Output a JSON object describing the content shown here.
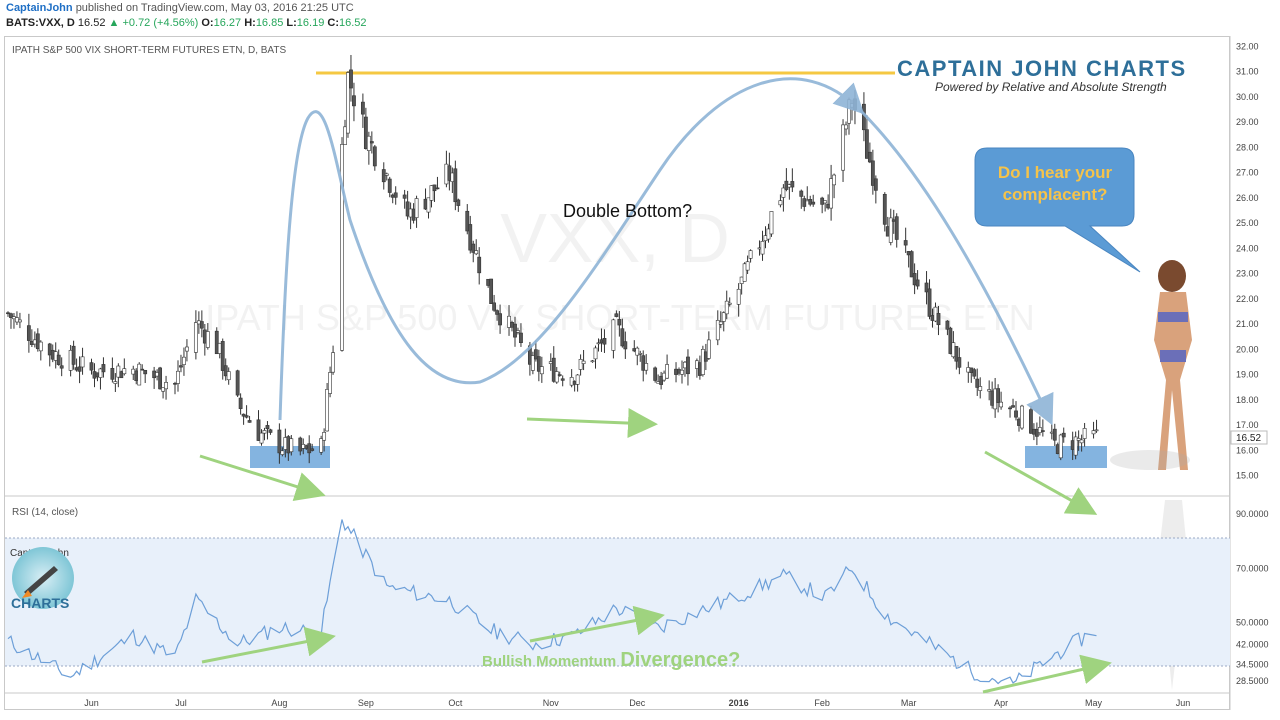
{
  "header": {
    "author": "CaptainJohn",
    "published": "published on TradingView.com, May 03, 2016 21:25 UTC",
    "symbol": "BATS:VXX, D",
    "last": "16.52",
    "change": "+0.72 (+4.56%)",
    "o_label": "O:",
    "o": "16.27",
    "h_label": "H:",
    "h": "16.85",
    "l_label": "L:",
    "l": "16.19",
    "c_label": "C:",
    "c": "16.52"
  },
  "chart": {
    "title": "IPATH S&P 500 VIX SHORT-TERM FUTURES ETN, D, BATS",
    "watermark_symbol": "VXX, D",
    "watermark_name": "IPATH S&P 500 VIX SHORT-TERM FUTURES ETN",
    "brand_title": "CAPTAIN  JOHN  CHARTS",
    "brand_subtitle": "Powered by Relative and  Absolute Strength",
    "double_bottom_label": "Double Bottom?",
    "bubble_text": "Do I hear your complacent?",
    "rsi_label": "RSI (14, close)",
    "logo_line1": "Captain John",
    "logo_line2": "CHARTS",
    "divergence_label_1": "Bullish Momentum ",
    "divergence_label_2": "Divergence?",
    "price_axis_ticks": [
      "32.00",
      "31.00",
      "30.00",
      "29.00",
      "28.00",
      "27.00",
      "26.00",
      "25.00",
      "24.00",
      "23.00",
      "22.00",
      "21.00",
      "20.00",
      "19.00",
      "18.00",
      "17.00",
      "16.00",
      "15.00"
    ],
    "current_price_tag": "16.52",
    "rsi_axis_ticks": [
      "90.0000",
      "70.0000",
      "50.0000",
      "42.0000",
      "34.5000",
      "28.5000"
    ],
    "x_ticks": [
      "Jun",
      "Jul",
      "Aug",
      "Sep",
      "Oct",
      "Nov",
      "Dec",
      "2016",
      "Feb",
      "Mar",
      "Apr",
      "May",
      "Jun"
    ],
    "colors": {
      "resistance": "#f5c842",
      "curve": "#8fb4d6",
      "arrow_green": "#9fd37f",
      "highlight": "#5b9bd5",
      "rsi_line": "#6d9fd8",
      "rsi_band": "#e8f0fa",
      "bubble": "#5b9bd5",
      "bubble_text": "#f5c34a",
      "brand_blue": "#2e6f99",
      "brand_accent": "#7db3d6"
    }
  },
  "chart_data": {
    "type": "candlestick",
    "title": "IPATH S&P 500 VIX SHORT-TERM FUTURES ETN, D, BATS",
    "y_range": [
      15,
      32
    ],
    "x_period": "May 2015 - Jun 2016",
    "close_points": [
      {
        "date": "2015-05-04",
        "close": 21.4
      },
      {
        "date": "2015-05-18",
        "close": 19.9
      },
      {
        "date": "2015-06-01",
        "close": 19.1
      },
      {
        "date": "2015-06-15",
        "close": 19.2
      },
      {
        "date": "2015-06-29",
        "close": 18.6
      },
      {
        "date": "2015-07-06",
        "close": 21.1
      },
      {
        "date": "2015-07-13",
        "close": 20.1
      },
      {
        "date": "2015-07-20",
        "close": 17.8
      },
      {
        "date": "2015-07-27",
        "close": 16.7
      },
      {
        "date": "2015-08-03",
        "close": 16.2
      },
      {
        "date": "2015-08-10",
        "close": 15.9
      },
      {
        "date": "2015-08-17",
        "close": 16.1
      },
      {
        "date": "2015-08-21",
        "close": 20.1
      },
      {
        "date": "2015-08-24",
        "close": 28.0
      },
      {
        "date": "2015-08-26",
        "close": 30.8
      },
      {
        "date": "2015-09-01",
        "close": 28.5
      },
      {
        "date": "2015-09-15",
        "close": 25.3
      },
      {
        "date": "2015-09-29",
        "close": 26.9
      },
      {
        "date": "2015-10-13",
        "close": 22.0
      },
      {
        "date": "2015-10-27",
        "close": 19.3
      },
      {
        "date": "2015-11-10",
        "close": 19.0
      },
      {
        "date": "2015-11-24",
        "close": 20.8
      },
      {
        "date": "2015-12-08",
        "close": 18.8
      },
      {
        "date": "2015-12-22",
        "close": 19.4
      },
      {
        "date": "2016-01-05",
        "close": 22.6
      },
      {
        "date": "2016-01-19",
        "close": 26.4
      },
      {
        "date": "2016-02-02",
        "close": 25.5
      },
      {
        "date": "2016-02-11",
        "close": 29.9
      },
      {
        "date": "2016-02-23",
        "close": 25.0
      },
      {
        "date": "2016-03-08",
        "close": 21.7
      },
      {
        "date": "2016-03-22",
        "close": 18.6
      },
      {
        "date": "2016-04-05",
        "close": 17.6
      },
      {
        "date": "2016-04-19",
        "close": 16.2
      },
      {
        "date": "2016-05-03",
        "close": 16.52
      }
    ],
    "annotations": {
      "resistance_level": 31.0,
      "double_bottom_zones": [
        [
          15.8,
          16.3
        ],
        [
          15.8,
          16.3
        ]
      ],
      "last_close": 16.52
    },
    "rsi": {
      "name": "RSI (14, close)",
      "y_range": [
        25,
        95
      ],
      "bands": [
        70,
        30
      ],
      "points": [
        {
          "date": "2015-05-04",
          "value": 43
        },
        {
          "date": "2015-05-25",
          "value": 30
        },
        {
          "date": "2015-06-15",
          "value": 45
        },
        {
          "date": "2015-06-29",
          "value": 37
        },
        {
          "date": "2015-07-06",
          "value": 58
        },
        {
          "date": "2015-07-20",
          "value": 42
        },
        {
          "date": "2015-08-03",
          "value": 48
        },
        {
          "date": "2015-08-17",
          "value": 46
        },
        {
          "date": "2015-08-24",
          "value": 88
        },
        {
          "date": "2015-09-08",
          "value": 63
        },
        {
          "date": "2015-09-29",
          "value": 58
        },
        {
          "date": "2015-10-13",
          "value": 47
        },
        {
          "date": "2015-10-27",
          "value": 42
        },
        {
          "date": "2015-11-10",
          "value": 45
        },
        {
          "date": "2015-11-24",
          "value": 55
        },
        {
          "date": "2015-12-08",
          "value": 48
        },
        {
          "date": "2015-12-22",
          "value": 54
        },
        {
          "date": "2016-01-05",
          "value": 60
        },
        {
          "date": "2016-01-19",
          "value": 67
        },
        {
          "date": "2016-02-02",
          "value": 59
        },
        {
          "date": "2016-02-11",
          "value": 70
        },
        {
          "date": "2016-02-23",
          "value": 52
        },
        {
          "date": "2016-03-08",
          "value": 42
        },
        {
          "date": "2016-03-22",
          "value": 32
        },
        {
          "date": "2016-04-05",
          "value": 27
        },
        {
          "date": "2016-04-19",
          "value": 38
        },
        {
          "date": "2016-05-03",
          "value": 47
        }
      ]
    }
  }
}
